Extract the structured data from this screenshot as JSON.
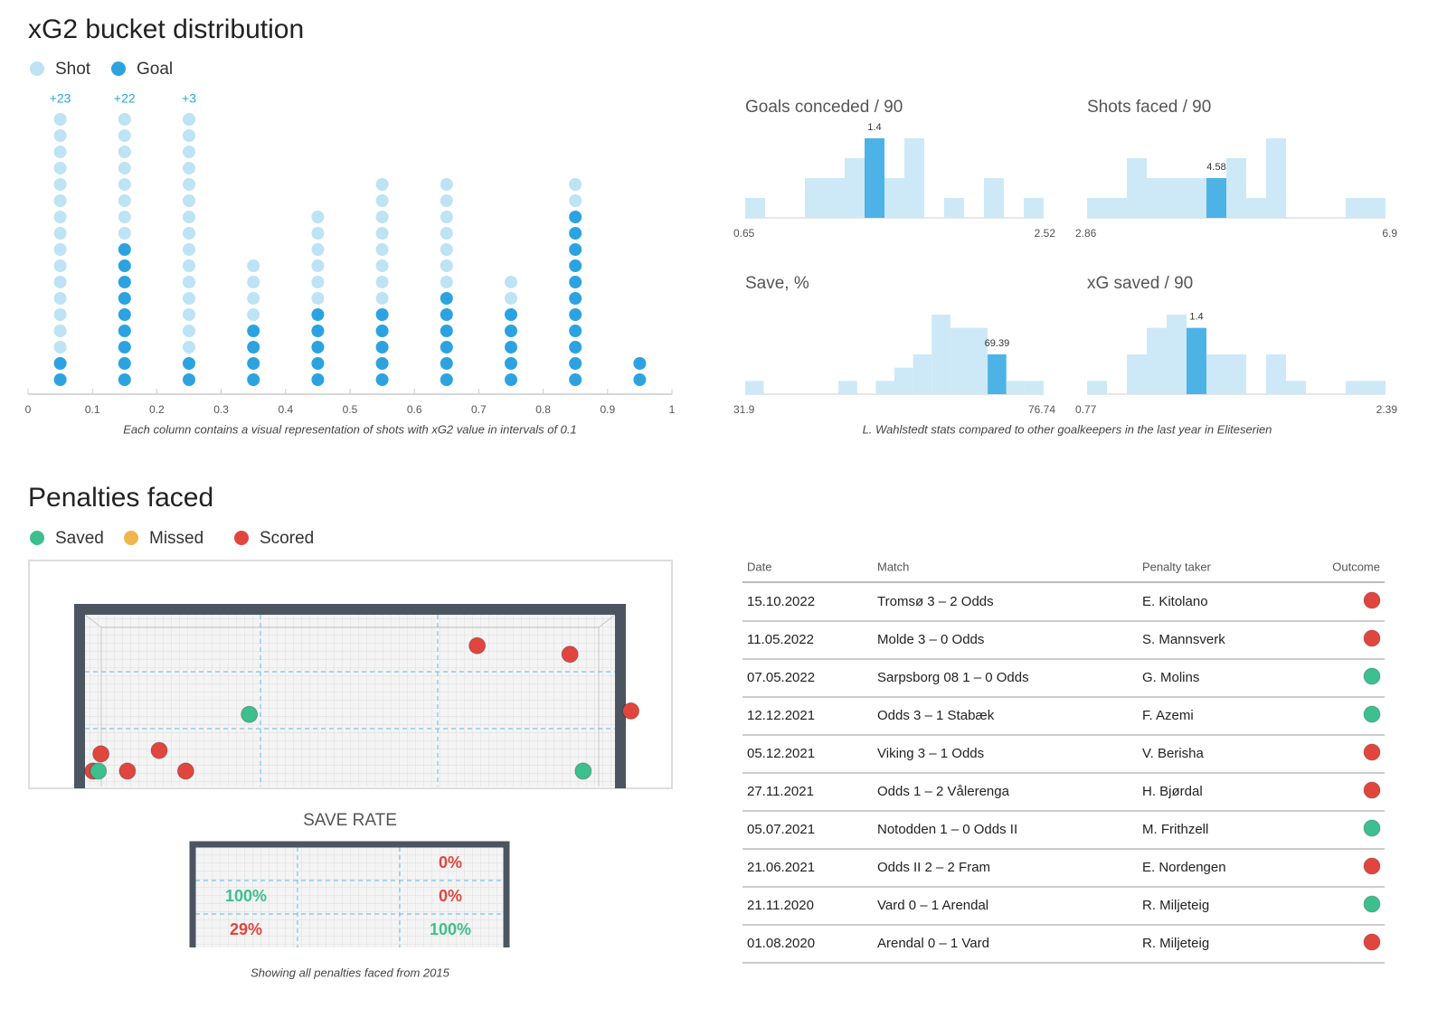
{
  "chart_data": [
    {
      "type": "dotplot",
      "title": "xG2 bucket distribution",
      "x": [
        0.05,
        0.15,
        0.25,
        0.35,
        0.45,
        0.55,
        0.65,
        0.75,
        0.85,
        0.95
      ],
      "series": [
        {
          "name": "Shot",
          "color": "#bde3f4",
          "values": [
            15,
            8,
            15,
            4,
            6,
            8,
            7,
            2,
            2,
            0
          ]
        },
        {
          "name": "Goal",
          "color": "#2ca3e0",
          "values": [
            2,
            9,
            2,
            4,
            5,
            5,
            6,
            5,
            11,
            2
          ]
        }
      ],
      "overflow": [
        {
          "x": 0.05,
          "label": "+23"
        },
        {
          "x": 0.15,
          "label": "+22"
        },
        {
          "x": 0.25,
          "label": "+3"
        }
      ],
      "xlim": [
        0,
        1
      ],
      "xticks": [
        0,
        0.1,
        0.2,
        0.3,
        0.4,
        0.5,
        0.6,
        0.7,
        0.8,
        0.9,
        1
      ],
      "caption": "Each column contains a visual representation of shots with xG2 value in intervals of 0.1"
    },
    {
      "type": "histogram",
      "title": "Goals conceded / 90",
      "xlim": [
        0.65,
        2.52
      ],
      "xticks": [
        0.65,
        2.52
      ],
      "values": [
        1,
        0,
        0,
        2,
        2,
        3,
        4,
        2,
        4,
        0,
        1,
        0,
        2,
        0,
        1
      ],
      "highlight": 1.4,
      "color": "#cde9f7",
      "highlight_color": "#4db3e6"
    },
    {
      "type": "histogram",
      "title": "Shots faced / 90",
      "xlim": [
        2.86,
        6.9
      ],
      "xticks": [
        2.86,
        6.9
      ],
      "values": [
        1,
        1,
        3,
        2,
        2,
        2,
        2,
        3,
        1,
        4,
        0,
        0,
        0,
        1,
        1
      ],
      "highlight": 4.58,
      "color": "#cde9f7",
      "highlight_color": "#4db3e6"
    },
    {
      "type": "histogram",
      "title": "Save, %",
      "xlim": [
        31.9,
        76.74
      ],
      "xticks": [
        31.9,
        76.74
      ],
      "values": [
        1,
        0,
        0,
        0,
        0,
        1,
        0,
        1,
        2,
        3,
        6,
        5,
        5,
        3,
        1,
        1
      ],
      "highlight": 69.39,
      "color": "#cde9f7",
      "highlight_color": "#4db3e6"
    },
    {
      "type": "histogram",
      "title": "xG saved / 90",
      "xlim": [
        0.77,
        2.39
      ],
      "xticks": [
        0.77,
        2.39
      ],
      "values": [
        1,
        0,
        3,
        5,
        6,
        5,
        3,
        3,
        0,
        3,
        1,
        0,
        0,
        1,
        1
      ],
      "highlight": 1.4,
      "color": "#cde9f7",
      "highlight_color": "#4db3e6"
    }
  ],
  "histogram_caption": "L. Wahlstedt stats compared to other goalkeepers in the last year in Eliteserien",
  "penalties": {
    "title": "Penalties faced",
    "legend": [
      {
        "name": "Saved",
        "color": "#3dbf8f"
      },
      {
        "name": "Missed",
        "color": "#f0b64c"
      },
      {
        "name": "Scored",
        "color": "#e0463e"
      }
    ],
    "points": [
      {
        "x": 0.74,
        "y": 0.82,
        "outcome": "Scored"
      },
      {
        "x": 0.915,
        "y": 0.77,
        "outcome": "Scored"
      },
      {
        "x": 1.03,
        "y": 0.44,
        "outcome": "Scored"
      },
      {
        "x": 0.31,
        "y": 0.42,
        "outcome": "Saved"
      },
      {
        "x": 0.03,
        "y": 0.19,
        "outcome": "Scored"
      },
      {
        "x": 0.14,
        "y": 0.21,
        "outcome": "Scored"
      },
      {
        "x": 0.015,
        "y": 0.09,
        "outcome": "Scored"
      },
      {
        "x": 0.025,
        "y": 0.09,
        "outcome": "Saved"
      },
      {
        "x": 0.08,
        "y": 0.09,
        "outcome": "Scored"
      },
      {
        "x": 0.19,
        "y": 0.09,
        "outcome": "Scored"
      },
      {
        "x": 0.94,
        "y": 0.09,
        "outcome": "Saved"
      }
    ],
    "save_rate": {
      "title": "SAVE RATE",
      "zones": [
        {
          "row": 0,
          "col": 2,
          "value": 0,
          "label": "0%"
        },
        {
          "row": 1,
          "col": 0,
          "value": 100,
          "label": "100%"
        },
        {
          "row": 1,
          "col": 2,
          "value": 0,
          "label": "0%"
        },
        {
          "row": 2,
          "col": 0,
          "value": 29,
          "label": "29%"
        },
        {
          "row": 2,
          "col": 2,
          "value": 100,
          "label": "100%"
        }
      ]
    },
    "caption": "Showing all penalties faced from 2015"
  },
  "table": {
    "columns": [
      "Date",
      "Match",
      "Penalty taker",
      "Outcome"
    ],
    "rows": [
      {
        "date": "15.10.2022",
        "match": "Tromsø 3 – 2 Odds",
        "taker": "E. Kitolano",
        "outcome": "Scored"
      },
      {
        "date": "11.05.2022",
        "match": "Molde 3 – 0 Odds",
        "taker": "S. Mannsverk",
        "outcome": "Scored"
      },
      {
        "date": "07.05.2022",
        "match": "Sarpsborg 08 1 – 0 Odds",
        "taker": "G. Molins",
        "outcome": "Saved"
      },
      {
        "date": "12.12.2021",
        "match": "Odds 3 – 1 Stabæk",
        "taker": "F. Azemi",
        "outcome": "Saved"
      },
      {
        "date": "05.12.2021",
        "match": "Viking 3 – 1 Odds",
        "taker": "V. Berisha",
        "outcome": "Scored"
      },
      {
        "date": "27.11.2021",
        "match": "Odds 1 – 2 Vålerenga",
        "taker": "H. Bjørdal",
        "outcome": "Scored"
      },
      {
        "date": "05.07.2021",
        "match": "Notodden 1 – 0 Odds II",
        "taker": "M. Frithzell",
        "outcome": "Saved"
      },
      {
        "date": "21.06.2021",
        "match": "Odds II 2 – 2 Fram",
        "taker": "E. Nordengen",
        "outcome": "Scored"
      },
      {
        "date": "21.11.2020",
        "match": "Vard 0 – 1 Arendal",
        "taker": "R. Miljeteig",
        "outcome": "Saved"
      },
      {
        "date": "01.08.2020",
        "match": "Arendal 0 – 1 Vard",
        "taker": "R. Miljeteig",
        "outcome": "Scored"
      }
    ]
  }
}
